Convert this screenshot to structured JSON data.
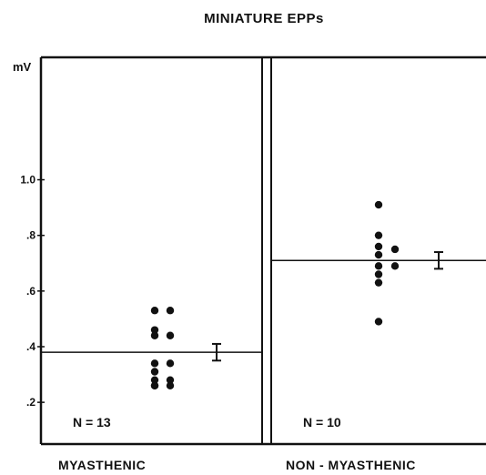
{
  "chart_data": {
    "type": "scatter",
    "title": "MINIATURE EPPs",
    "ylabel": "mV",
    "ylim": [
      0.05,
      1.44
    ],
    "yticks": [
      {
        "value": 1.0,
        "label": "1.0"
      },
      {
        "value": 0.8,
        "label": ".8"
      },
      {
        "value": 0.6,
        "label": ".6"
      },
      {
        "value": 0.4,
        "label": ".4"
      },
      {
        "value": 0.2,
        "label": ".2"
      }
    ],
    "groups": [
      {
        "label": "MYASTHENIC",
        "n_label": "N = 13",
        "mean": 0.38,
        "error_bar": [
          0.35,
          0.41
        ],
        "points": [
          {
            "col": 0,
            "y": 0.53
          },
          {
            "col": 1,
            "y": 0.53
          },
          {
            "col": 0,
            "y": 0.46
          },
          {
            "col": 0,
            "y": 0.44
          },
          {
            "col": 1,
            "y": 0.44
          },
          {
            "col": 0,
            "y": 0.34
          },
          {
            "col": 1,
            "y": 0.34
          },
          {
            "col": 0,
            "y": 0.31
          },
          {
            "col": 0,
            "y": 0.28
          },
          {
            "col": 1,
            "y": 0.28
          },
          {
            "col": 0,
            "y": 0.26
          },
          {
            "col": 1,
            "y": 0.26
          },
          {
            "col": 0,
            "y": 0.26
          }
        ]
      },
      {
        "label": "NON - MYASTHENIC",
        "n_label": "N = 10",
        "mean": 0.71,
        "error_bar": [
          0.68,
          0.74
        ],
        "points": [
          {
            "col": 0,
            "y": 0.91
          },
          {
            "col": 0,
            "y": 0.8
          },
          {
            "col": 0,
            "y": 0.76
          },
          {
            "col": 1,
            "y": 0.75
          },
          {
            "col": 0,
            "y": 0.73
          },
          {
            "col": 0,
            "y": 0.69
          },
          {
            "col": 1,
            "y": 0.69
          },
          {
            "col": 0,
            "y": 0.66
          },
          {
            "col": 0,
            "y": 0.63
          },
          {
            "col": 0,
            "y": 0.49
          }
        ]
      }
    ],
    "grid": false,
    "colors": {
      "ink": "#111111",
      "background": "#ffffff"
    }
  }
}
